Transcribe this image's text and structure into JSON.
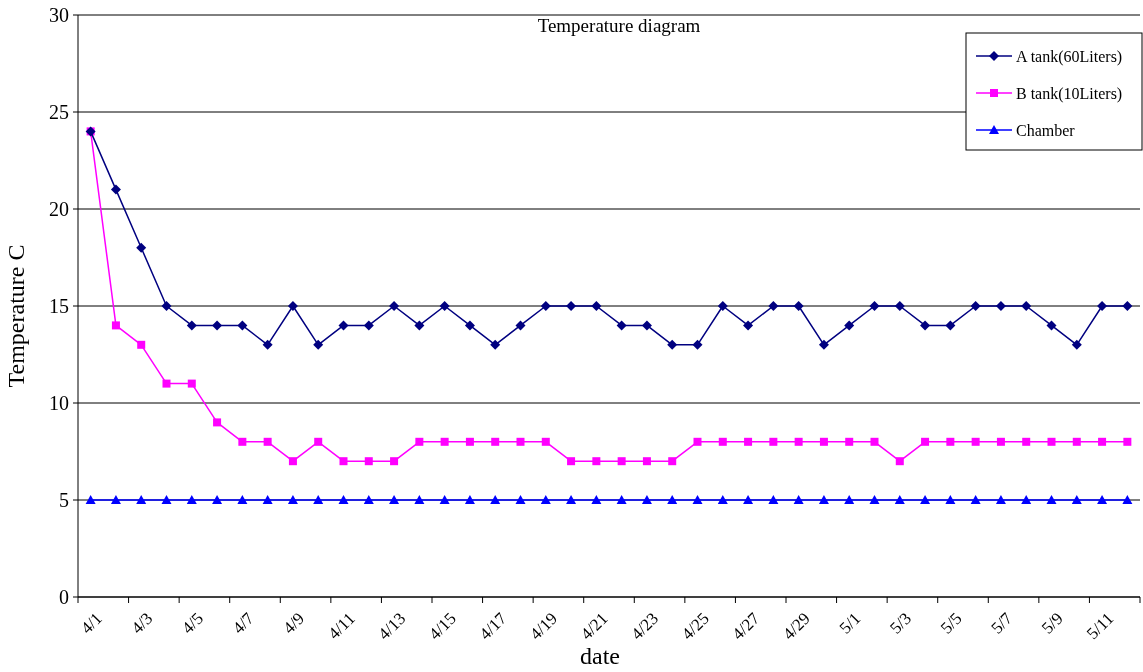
{
  "chart_data": {
    "type": "line",
    "title": "Temperature diagram",
    "xlabel": "date",
    "ylabel": "Temperature C",
    "categories": [
      "4/1",
      null,
      "4/3",
      null,
      "4/5",
      null,
      "4/7",
      null,
      "4/9",
      null,
      "4/11",
      null,
      "4/13",
      null,
      "4/15",
      null,
      "4/17",
      null,
      "4/19",
      null,
      "4/21",
      null,
      "4/23",
      null,
      "4/25",
      null,
      "4/27",
      null,
      "4/29",
      null,
      "5/1",
      null,
      "5/3",
      null,
      "5/5",
      null,
      "5/7",
      null,
      "5/9",
      null,
      "5/11",
      null
    ],
    "series": [
      {
        "name": "A tank(60Liters)",
        "color": "#000080",
        "marker": "diamond",
        "values": [
          24,
          21,
          18,
          15,
          14,
          14,
          14,
          13,
          15,
          13,
          14,
          14,
          15,
          14,
          15,
          14,
          13,
          14,
          15,
          15,
          15,
          14,
          14,
          13,
          13,
          15,
          14,
          15,
          15,
          13,
          14,
          15,
          15,
          14,
          14,
          15,
          15,
          15,
          14,
          13,
          15,
          15
        ]
      },
      {
        "name": "B tank(10Liters)",
        "color": "#ff00ff",
        "marker": "square",
        "values": [
          24,
          14,
          13,
          11,
          11,
          9,
          8,
          8,
          7,
          8,
          7,
          7,
          7,
          8,
          8,
          8,
          8,
          8,
          8,
          7,
          7,
          7,
          7,
          7,
          8,
          8,
          8,
          8,
          8,
          8,
          8,
          8,
          7,
          8,
          8,
          8,
          8,
          8,
          8,
          8,
          8,
          8
        ]
      },
      {
        "name": "Chamber",
        "color": "#0000ff",
        "marker": "triangle",
        "values": [
          5,
          5,
          5,
          5,
          5,
          5,
          5,
          5,
          5,
          5,
          5,
          5,
          5,
          5,
          5,
          5,
          5,
          5,
          5,
          5,
          5,
          5,
          5,
          5,
          5,
          5,
          5,
          5,
          5,
          5,
          5,
          5,
          5,
          5,
          5,
          5,
          5,
          5,
          5,
          5,
          5,
          5
        ]
      }
    ],
    "ylim": [
      0,
      30
    ],
    "yticks": [
      0,
      5,
      10,
      15,
      20,
      25,
      30
    ],
    "grid": "y",
    "legend": "top right",
    "line_style": "solid"
  }
}
